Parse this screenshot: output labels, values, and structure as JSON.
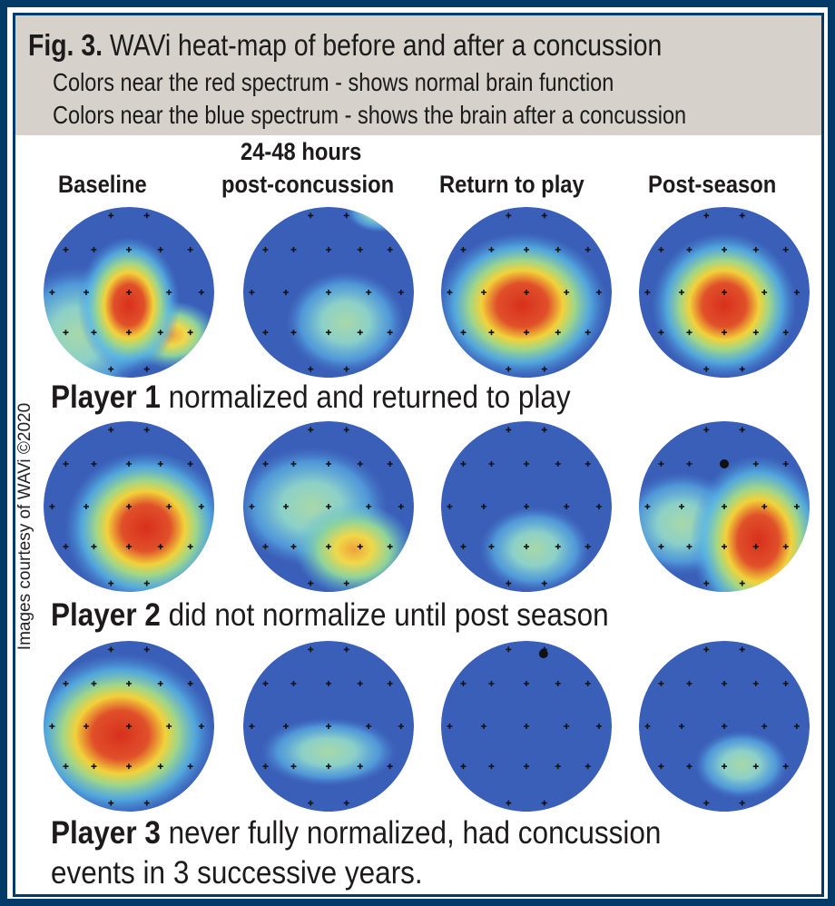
{
  "header": {
    "fig_label": "Fig. 3.",
    "title": "WAVi heat-map of before and after a concussion",
    "line1": "Colors near the red spectrum - shows normal brain function",
    "line2": "Colors near the blue spectrum - shows the brain after a concussion"
  },
  "columns": [
    {
      "label": "Baseline"
    },
    {
      "label_line1": "24-48 hours",
      "label": "post-concussion"
    },
    {
      "label": "Return to play"
    },
    {
      "label": "Post-season"
    }
  ],
  "players": [
    {
      "name": "Player 1",
      "caption": "normalized and returned to play"
    },
    {
      "name": "Player 2",
      "caption": "did not normalize until post season"
    },
    {
      "name": "Player 3",
      "caption": "never fully normalized, had concussion",
      "caption_line2": "events in 3 successive years."
    }
  ],
  "credit": "Images courtesy of WAVi ©2020",
  "colors": {
    "frame": "#043a68",
    "header_bg": "#d6d1ca",
    "scalp_low": "#3a5fb8",
    "scalp_high": "#d93a1f"
  }
}
